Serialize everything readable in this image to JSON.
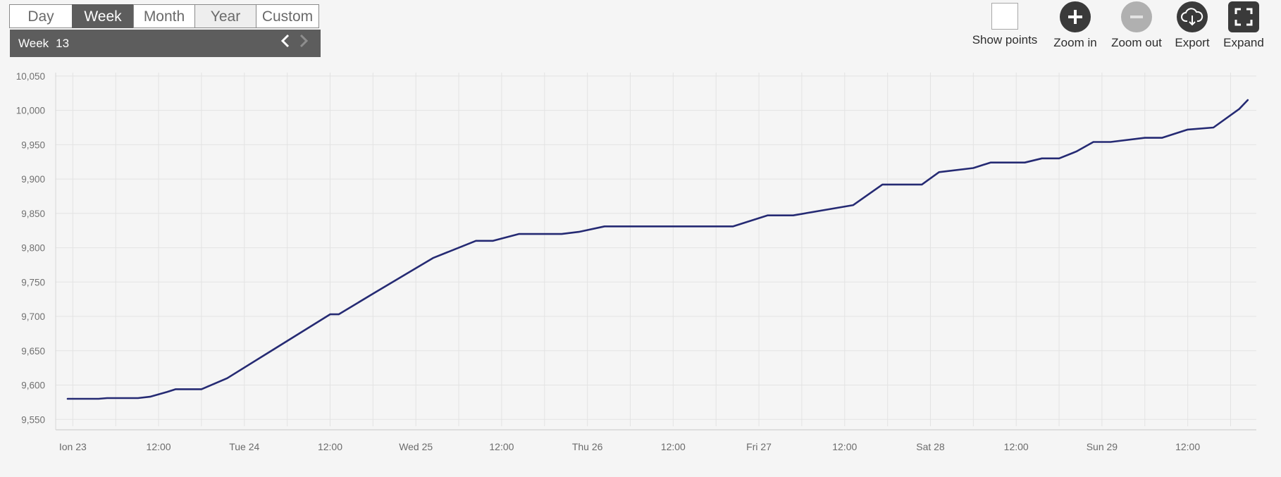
{
  "period_tabs": {
    "day": "Day",
    "week": "Week",
    "month": "Month",
    "year": "Year",
    "custom": "Custom"
  },
  "week_selector": {
    "label": "Week",
    "number": "13"
  },
  "toolbar": {
    "show_points": "Show points",
    "zoom_in": "Zoom in",
    "zoom_out": "Zoom out",
    "export": "Export",
    "expand": "Expand"
  },
  "colors": {
    "series": "#252a73",
    "active_tab": "#5d5d5d",
    "grid": "#e3e3e3"
  },
  "chart_data": {
    "type": "line",
    "title": "",
    "xlabel": "",
    "ylabel": "",
    "grid": true,
    "ylim": [
      9540,
      10055
    ],
    "xlim": [
      -0.1,
      6.9
    ],
    "y_ticks": [
      10050,
      10000,
      9950,
      9900,
      9850,
      9800,
      9750,
      9700,
      9650,
      9600,
      9550
    ],
    "y_tick_labels": [
      "10,050",
      "10,000",
      "9,950",
      "9,900",
      "9,850",
      "9,800",
      "9,750",
      "9,700",
      "9,650",
      "9,600",
      "9,550"
    ],
    "x_ticks": [
      0,
      0.5,
      1,
      1.5,
      2,
      2.5,
      3,
      3.5,
      4,
      4.5,
      5,
      5.5,
      6,
      6.5
    ],
    "x_tick_labels": [
      "Ion 23",
      "12:00",
      "Tue 24",
      "12:00",
      "Wed 25",
      "12:00",
      "Thu 26",
      "12:00",
      "Fri 27",
      "12:00",
      "Sat 28",
      "12:00",
      "Sun 29",
      "12:00"
    ],
    "series": [
      {
        "x": [
          -0.03,
          0.15,
          0.2,
          0.38,
          0.45,
          0.55,
          0.6,
          0.75,
          0.9,
          1.5,
          1.55,
          1.75,
          2.1,
          2.35,
          2.45,
          2.6,
          2.85,
          2.95,
          3.1,
          3.85,
          4.05,
          4.2,
          4.55,
          4.72,
          4.95,
          5.05,
          5.25,
          5.35,
          5.55,
          5.65,
          5.75,
          5.85,
          5.95,
          6.05,
          6.25,
          6.35,
          6.5,
          6.65,
          6.8,
          6.85
        ],
        "y": [
          9580,
          9580,
          9581,
          9581,
          9583,
          9590,
          9594,
          9594,
          9610,
          9703,
          9703,
          9733,
          9785,
          9810,
          9810,
          9820,
          9820,
          9823,
          9831,
          9831,
          9847,
          9847,
          9862,
          9892,
          9892,
          9910,
          9916,
          9924,
          9924,
          9930,
          9930,
          9940,
          9954,
          9954,
          9960,
          9960,
          9972,
          9975,
          10002,
          10015
        ]
      }
    ]
  }
}
